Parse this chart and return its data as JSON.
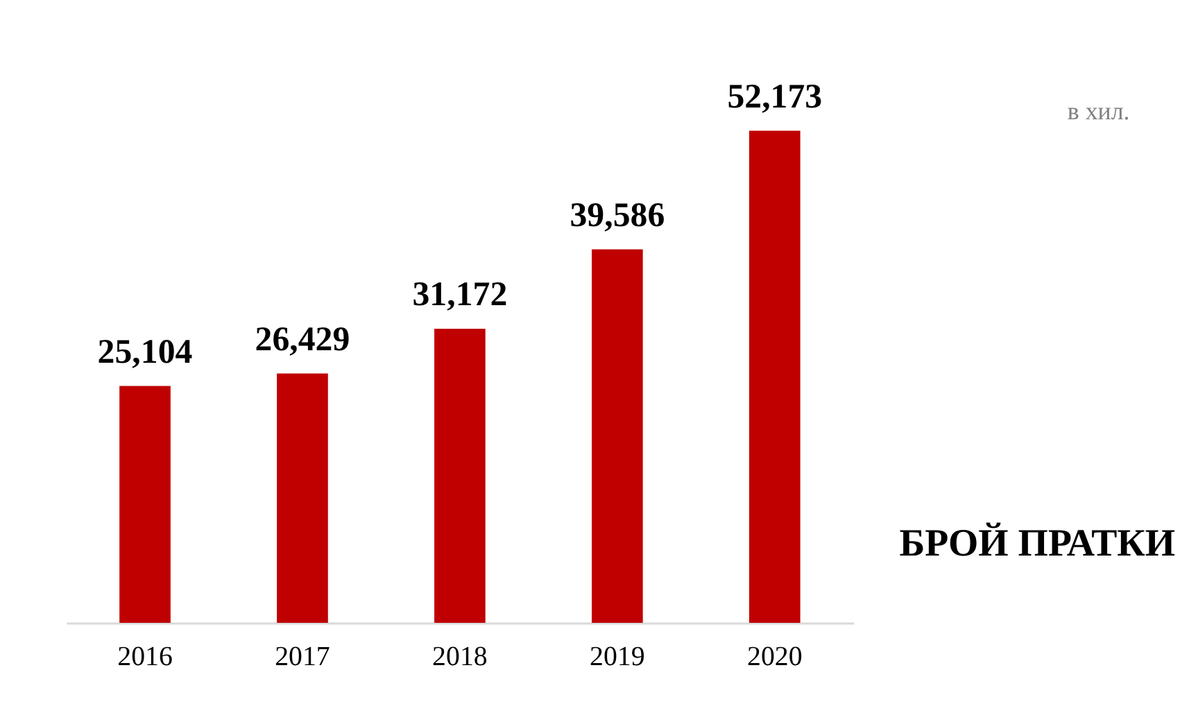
{
  "chart_data": {
    "type": "bar",
    "categories": [
      "2016",
      "2017",
      "2018",
      "2019",
      "2020"
    ],
    "values": [
      25104,
      26429,
      31172,
      39586,
      52173
    ],
    "value_labels": [
      "25,104",
      "26,429",
      "31,172",
      "39,586",
      "52,173"
    ],
    "color": "#c00000",
    "annotations": [
      "в хил.",
      "БРОЙ ПРАТКИ"
    ]
  }
}
